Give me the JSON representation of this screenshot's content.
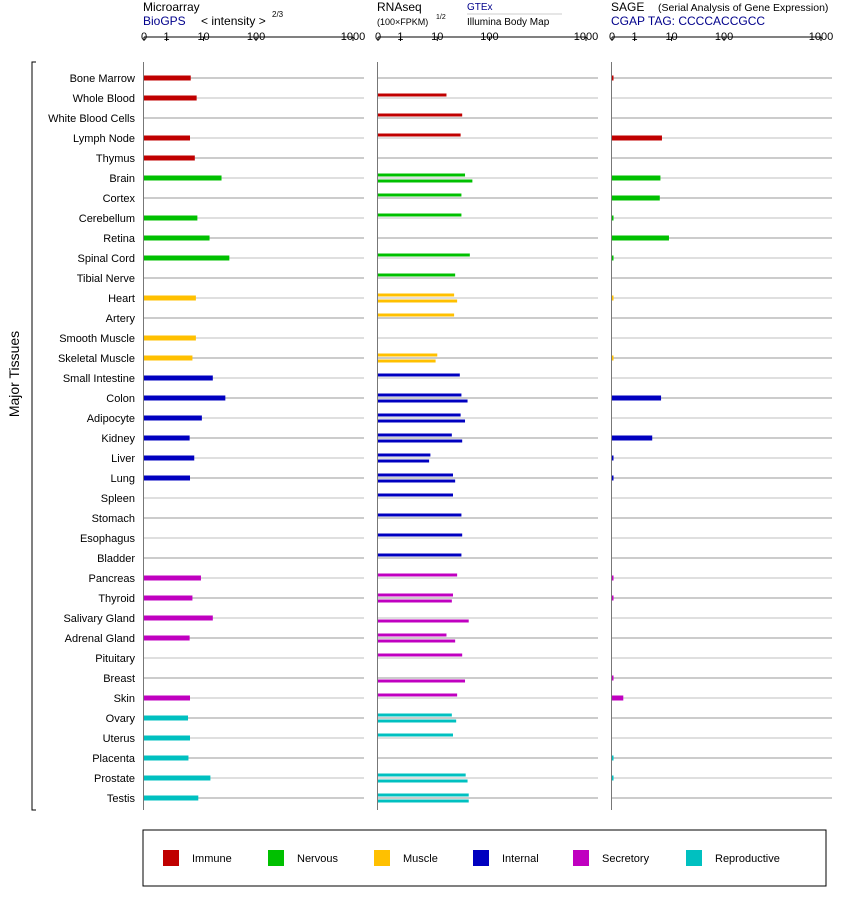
{
  "headers": {
    "microarray": {
      "title": "Microarray",
      "source": "BioGPS",
      "scale_prefix": "< intensity >",
      "scale_exp": "2/3"
    },
    "rnaseq": {
      "title": "RNAseq",
      "unit": "(100×FPKM)",
      "unit_exp": "1/2",
      "src1": "GTEx",
      "src2": "Illumina Body Map"
    },
    "sage": {
      "title": "SAGE",
      "subtitle": "(Serial Analysis of Gene Expression)",
      "tag": "CGAP TAG: CCCCACCGCC"
    }
  },
  "axis_ticks": [
    "0",
    "1",
    "10",
    "100",
    "1000"
  ],
  "y_axis_label": "Major Tissues",
  "legend": [
    {
      "label": "Immune",
      "color": "#c00000"
    },
    {
      "label": "Nervous",
      "color": "#00c000"
    },
    {
      "label": "Muscle",
      "color": "#ffc000"
    },
    {
      "label": "Internal",
      "color": "#0000c0"
    },
    {
      "label": "Secretory",
      "color": "#c000c0"
    },
    {
      "label": "Reproductive",
      "color": "#00c0c0"
    }
  ],
  "chart_data": {
    "type": "bar",
    "orientation": "horizontal",
    "scale": "power (0, 1, 10, 100, 1000)",
    "xlim": [
      0,
      1000
    ],
    "categories": [
      "Bone Marrow",
      "Whole Blood",
      "White Blood Cells",
      "Lymph Node",
      "Thymus",
      "Brain",
      "Cortex",
      "Cerebellum",
      "Retina",
      "Spinal Cord",
      "Tibial Nerve",
      "Heart",
      "Artery",
      "Smooth Muscle",
      "Skeletal Muscle",
      "Small Intestine",
      "Colon",
      "Adipocyte",
      "Kidney",
      "Liver",
      "Lung",
      "Spleen",
      "Stomach",
      "Esophagus",
      "Bladder",
      "Pancreas",
      "Thyroid",
      "Salivary Gland",
      "Adrenal Gland",
      "Pituitary",
      "Breast",
      "Skin",
      "Ovary",
      "Uterus",
      "Placenta",
      "Prostate",
      "Testis"
    ],
    "groups": [
      "Immune",
      "Immune",
      "Immune",
      "Immune",
      "Immune",
      "Nervous",
      "Nervous",
      "Nervous",
      "Nervous",
      "Nervous",
      "Nervous",
      "Muscle",
      "Muscle",
      "Muscle",
      "Muscle",
      "Internal",
      "Internal",
      "Internal",
      "Internal",
      "Internal",
      "Internal",
      "Internal",
      "Internal",
      "Internal",
      "Internal",
      "Secretory",
      "Secretory",
      "Secretory",
      "Secretory",
      "Secretory",
      "Secretory",
      "Secretory",
      "Reproductive",
      "Reproductive",
      "Reproductive",
      "Reproductive",
      "Reproductive"
    ],
    "microarray": [
      4.5,
      6.5,
      null,
      4.3,
      5.8,
      22,
      null,
      6.8,
      13,
      31,
      null,
      6.2,
      null,
      6.2,
      5,
      15,
      26,
      9,
      4.2,
      5.6,
      4.3,
      null,
      null,
      null,
      null,
      8.5,
      5,
      15,
      4.2,
      null,
      null,
      4.3,
      3.8,
      4.3,
      3.9,
      13.5,
      7.2
    ],
    "rnaseq_gtex": [
      null,
      15,
      30,
      28,
      null,
      34,
      29,
      29,
      null,
      42,
      22,
      21,
      21,
      null,
      10,
      27,
      29,
      28,
      19,
      6.5,
      20,
      20,
      29,
      30,
      29,
      24,
      20,
      null,
      15,
      30,
      null,
      24,
      19,
      20,
      null,
      35,
      40
    ],
    "rnaseq_ibm": [
      null,
      null,
      null,
      null,
      null,
      47,
      null,
      null,
      null,
      null,
      null,
      24,
      null,
      null,
      9,
      null,
      38,
      34,
      30,
      6,
      22,
      null,
      null,
      null,
      null,
      null,
      19,
      40,
      22,
      null,
      34,
      null,
      23,
      null,
      null,
      38,
      40
    ],
    "sage": [
      0.05,
      null,
      null,
      5.5,
      null,
      5,
      4.8,
      0.02,
      8.5,
      0.02,
      null,
      0.01,
      null,
      null,
      0.01,
      null,
      5.2,
      null,
      3,
      0.05,
      0.05,
      null,
      null,
      null,
      null,
      0.05,
      0.05,
      null,
      null,
      null,
      0.05,
      0.5,
      null,
      null,
      0.02,
      0.02,
      null
    ]
  }
}
